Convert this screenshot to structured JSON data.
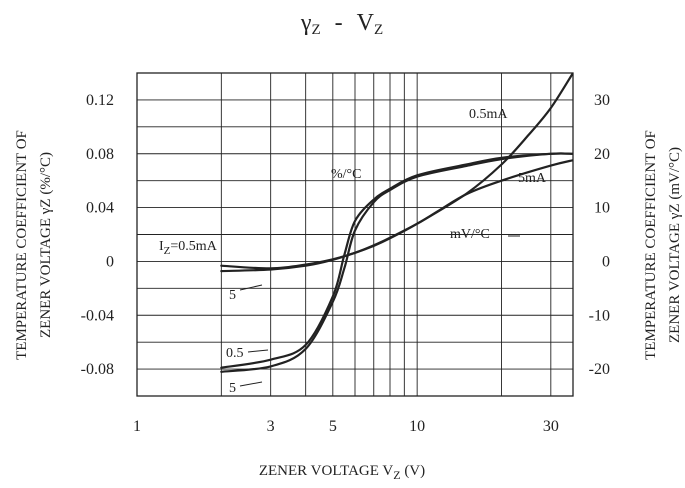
{
  "chart_data": {
    "type": "line",
    "title_parts": {
      "gamma": "γ",
      "gamma_sub": "Z",
      "sep": "-",
      "v": "V",
      "v_sub": "Z"
    },
    "xlabel": {
      "text": "ZENER VOLTAGE  V",
      "sub": "Z",
      "unit": " (V)"
    },
    "ylabel_left": {
      "line1": "TEMPERATURE COEFFICIENT OF",
      "line2": "ZENER VOLTAGE  γZ (%/°C)"
    },
    "ylabel_right": {
      "line1": "TEMPERATURE COEFFICIENT OF",
      "line2": "ZENER VOLTAGE  γZ (mV/°C)"
    },
    "x_scale": "log",
    "xlim": [
      1,
      36
    ],
    "x_ticks": [
      1,
      3,
      5,
      10,
      30
    ],
    "x_tick_labels": [
      "1",
      "3",
      "5",
      "10",
      "30"
    ],
    "x_minor_grid": [
      2,
      3,
      4,
      5,
      6,
      7,
      8,
      9,
      10,
      20,
      30
    ],
    "ylim_left": [
      -0.1,
      0.14
    ],
    "y_ticks_left": [
      0.12,
      0.08,
      0.04,
      0,
      -0.04,
      -0.08
    ],
    "y_tick_labels_left": [
      "0.12",
      "0.08",
      "0.04",
      "0",
      "-0.04",
      "-0.08"
    ],
    "ylim_right": [
      -25,
      35
    ],
    "y_ticks_right": [
      30,
      20,
      10,
      0,
      -10,
      -20
    ],
    "y_tick_labels_right": [
      "30",
      "20",
      "10",
      "0",
      "-10",
      "-20"
    ],
    "y_grid_left": [
      -0.08,
      -0.06,
      -0.04,
      -0.02,
      0,
      0.02,
      0.04,
      0.06,
      0.08,
      0.1,
      0.12
    ],
    "grid": true,
    "annotations": {
      "pct_group": "%/°C",
      "mv_group": "mV/°C",
      "iz_prefix": "I",
      "iz_sub": "Z",
      "iz_value": "=0.5mA",
      "mv_5": "5",
      "pct_05": "0.5",
      "pct_5": "5",
      "mv_05_top": "0.5mA",
      "pct_5_top": "5mA"
    },
    "series": [
      {
        "axis": "left",
        "x": [
          2,
          3,
          4,
          5,
          5.5,
          6,
          7,
          8,
          10,
          15,
          20,
          30,
          36
        ],
        "y": [
          -0.079,
          -0.073,
          -0.062,
          -0.026,
          0.005,
          0.03,
          0.046,
          0.054,
          0.064,
          0.072,
          0.077,
          0.08,
          0.08
        ]
      },
      {
        "axis": "left",
        "x": [
          2,
          3,
          4,
          5,
          5.5,
          6,
          7,
          8,
          10,
          15,
          20,
          30,
          36
        ],
        "y": [
          -0.082,
          -0.078,
          -0.065,
          -0.03,
          -0.005,
          0.023,
          0.044,
          0.053,
          0.063,
          0.071,
          0.076,
          0.08,
          0.08
        ]
      },
      {
        "axis": "right",
        "x": [
          2,
          3,
          4,
          5,
          6,
          7,
          8,
          10,
          15,
          20,
          25,
          30,
          36
        ],
        "y": [
          -1.8,
          -1.5,
          -0.8,
          0.3,
          1.6,
          2.9,
          4.3,
          7,
          12.6,
          18,
          23.5,
          28.5,
          35
        ]
      },
      {
        "axis": "right",
        "x": [
          2,
          3,
          4,
          5,
          6,
          7,
          8,
          10,
          12,
          15,
          20,
          30,
          36
        ],
        "y": [
          -0.8,
          -1.3,
          -0.6,
          0.4,
          1.6,
          3,
          4.4,
          7,
          9.5,
          12.5,
          15,
          17.8,
          18.8
        ]
      }
    ]
  }
}
